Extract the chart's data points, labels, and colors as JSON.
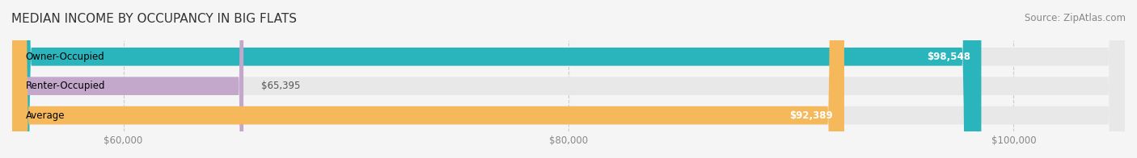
{
  "title": "MEDIAN INCOME BY OCCUPANCY IN BIG FLATS",
  "source": "Source: ZipAtlas.com",
  "categories": [
    "Owner-Occupied",
    "Renter-Occupied",
    "Average"
  ],
  "values": [
    98548,
    65395,
    92389
  ],
  "bar_colors": [
    "#2ab5bc",
    "#c4a8cc",
    "#f5b85a"
  ],
  "value_labels": [
    "$98,548",
    "$65,395",
    "$92,389"
  ],
  "xlim_min": 55000,
  "xlim_max": 105000,
  "xticks": [
    60000,
    80000,
    100000
  ],
  "xtick_labels": [
    "$60,000",
    "$80,000",
    "$100,000"
  ],
  "bar_height": 0.62,
  "bg_color": "#f5f5f5",
  "bar_bg_color": "#e8e8e8",
  "title_fontsize": 11,
  "label_fontsize": 8.5,
  "tick_fontsize": 8.5,
  "source_fontsize": 8.5
}
